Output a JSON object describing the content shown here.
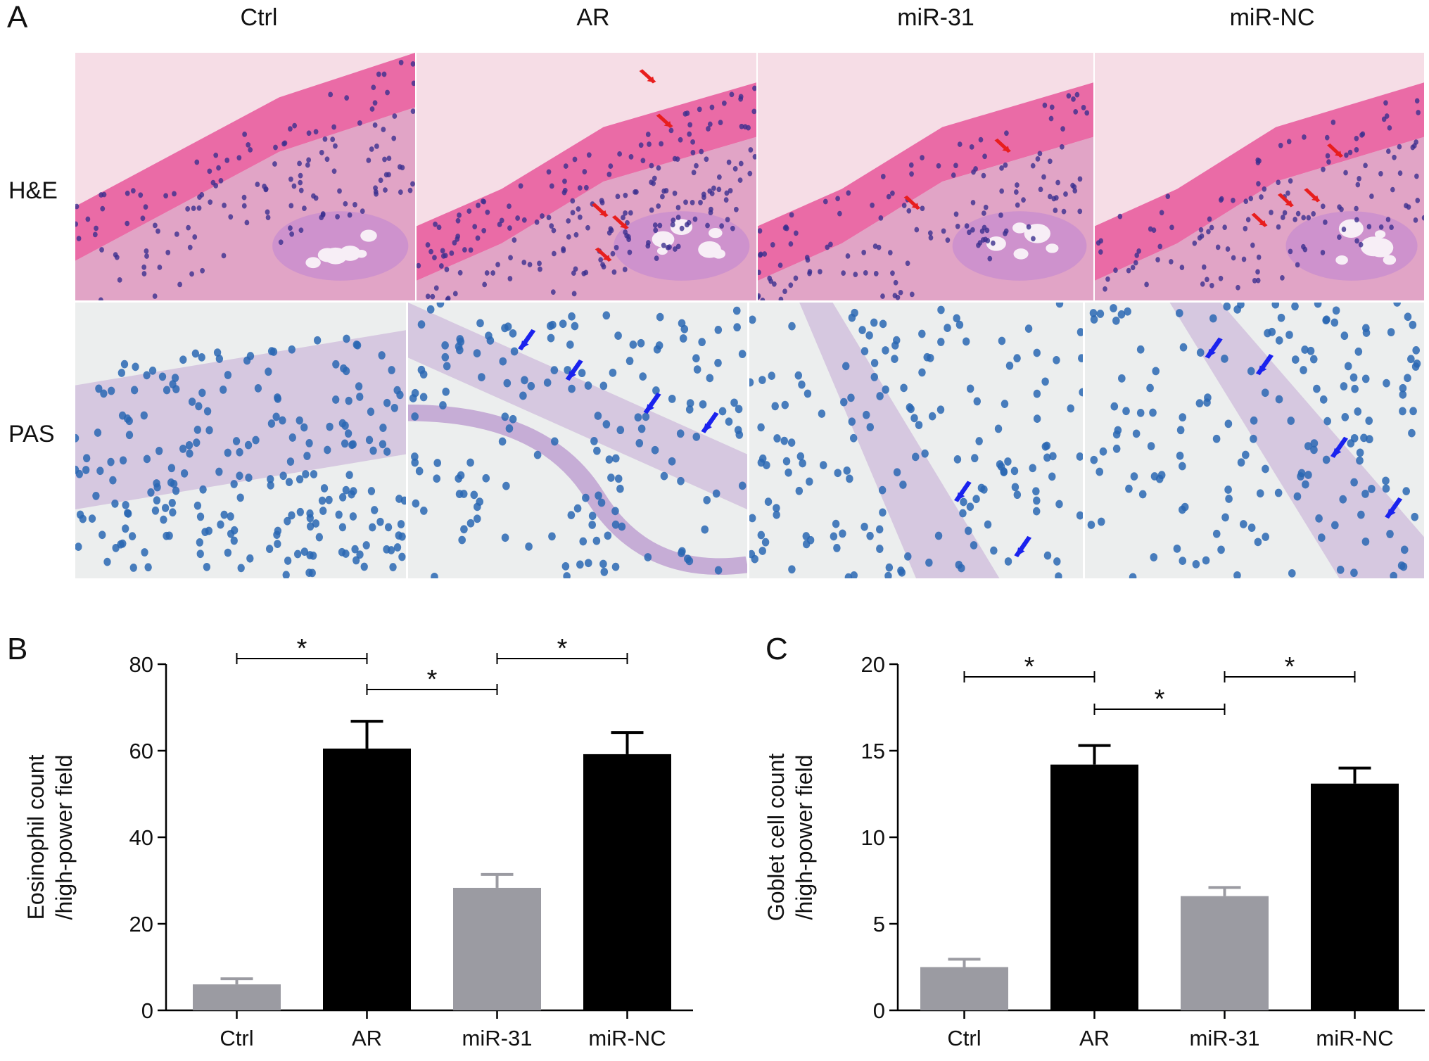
{
  "panel_letters": {
    "a": "A",
    "b": "B",
    "c": "C"
  },
  "figure_a": {
    "columns": [
      "Ctrl",
      "AR",
      "miR-31",
      "miR-NC"
    ],
    "rows": [
      "H&E",
      "PAS"
    ]
  },
  "colors": {
    "he_background": "#f6dde6",
    "he_stain": "#e8579a",
    "he_nuclei": "#3b2f8f",
    "pas_background": "#eceeee",
    "pas_nuclei": "#2a67b3",
    "pas_stroma": "#c5a9d6",
    "red_arrow": "#e81e1e",
    "blue_arrow": "#1a22ee",
    "bar_gray": "#9b9ba2",
    "bar_black": "#000000"
  },
  "chart_data": [
    {
      "type": "bar",
      "categories": [
        "Ctrl",
        "AR",
        "miR-31",
        "miR-NC"
      ],
      "values": [
        6,
        60.5,
        28.3,
        59.2
      ],
      "errors": [
        1.3,
        6.3,
        3.1,
        5.0
      ],
      "bar_colors": [
        "#9b9ba2",
        "#000000",
        "#9b9ba2",
        "#000000"
      ],
      "ylabel_line1": "Eosinophil count",
      "ylabel_line2": "/high-power field",
      "ylim": [
        0,
        80
      ],
      "yticks": [
        "0",
        "20",
        "40",
        "60",
        "80"
      ],
      "ytick_values": [
        0,
        20,
        40,
        60,
        80
      ],
      "significance": [
        {
          "from": 0,
          "to": 1,
          "tier": 1,
          "label": "*"
        },
        {
          "from": 1,
          "to": 2,
          "tier": 2,
          "label": "*"
        },
        {
          "from": 2,
          "to": 3,
          "tier": 1,
          "label": "*"
        }
      ],
      "grid": false
    },
    {
      "type": "bar",
      "categories": [
        "Ctrl",
        "AR",
        "miR-31",
        "miR-NC"
      ],
      "values": [
        2.5,
        14.2,
        6.6,
        13.1
      ],
      "errors": [
        0.45,
        1.1,
        0.5,
        0.9
      ],
      "bar_colors": [
        "#9b9ba2",
        "#000000",
        "#9b9ba2",
        "#000000"
      ],
      "ylabel_line1": "Goblet cell count",
      "ylabel_line2": "/high-power field",
      "ylim": [
        0,
        20
      ],
      "yticks": [
        "0",
        "5",
        "10",
        "15",
        "20"
      ],
      "ytick_values": [
        0,
        5,
        10,
        15,
        20
      ],
      "significance": [
        {
          "from": 0,
          "to": 1,
          "tier": 1,
          "label": "*"
        },
        {
          "from": 1,
          "to": 2,
          "tier": 2,
          "label": "*"
        },
        {
          "from": 2,
          "to": 3,
          "tier": 1,
          "label": "*"
        }
      ],
      "grid": false
    }
  ]
}
